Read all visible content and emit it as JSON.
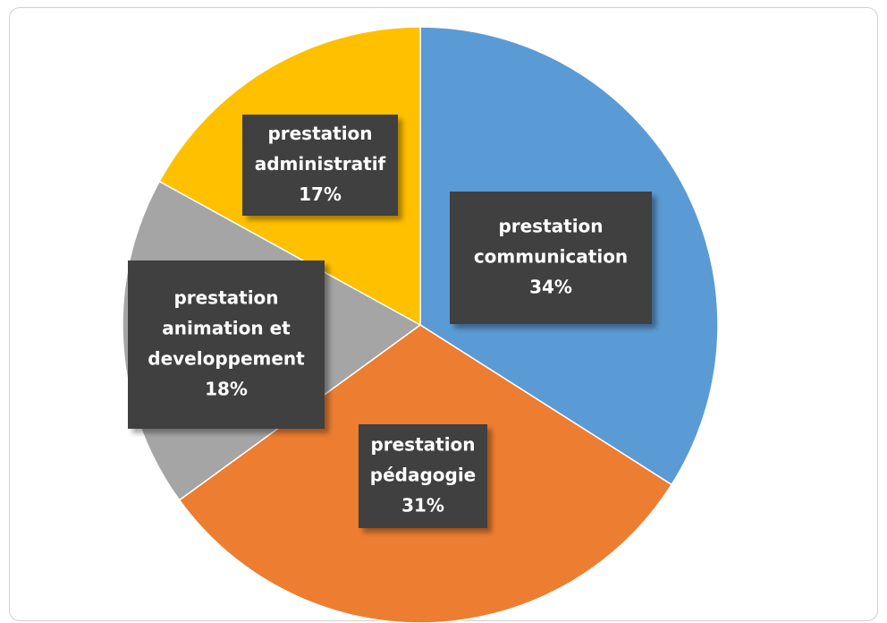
{
  "chart_data": {
    "type": "pie",
    "start_angle_deg": 0,
    "direction": "clockwise",
    "slices": [
      {
        "label": [
          "prestation",
          "communication"
        ],
        "value": 34,
        "value_label": "34%",
        "color": "#5B9BD5"
      },
      {
        "label": [
          "prestation",
          "pédagogie"
        ],
        "value": 31,
        "value_label": "31%",
        "color": "#ED7D31"
      },
      {
        "label": [
          "prestation",
          "animation et",
          "developpement"
        ],
        "value": 18,
        "value_label": "18%",
        "color": "#A5A5A5"
      },
      {
        "label": [
          "prestation",
          "administratif"
        ],
        "value": 17,
        "value_label": "17%",
        "color": "#FFC000"
      }
    ],
    "label_box_color": "#3F3F3F",
    "label_text_color": "#FFFFFF"
  }
}
